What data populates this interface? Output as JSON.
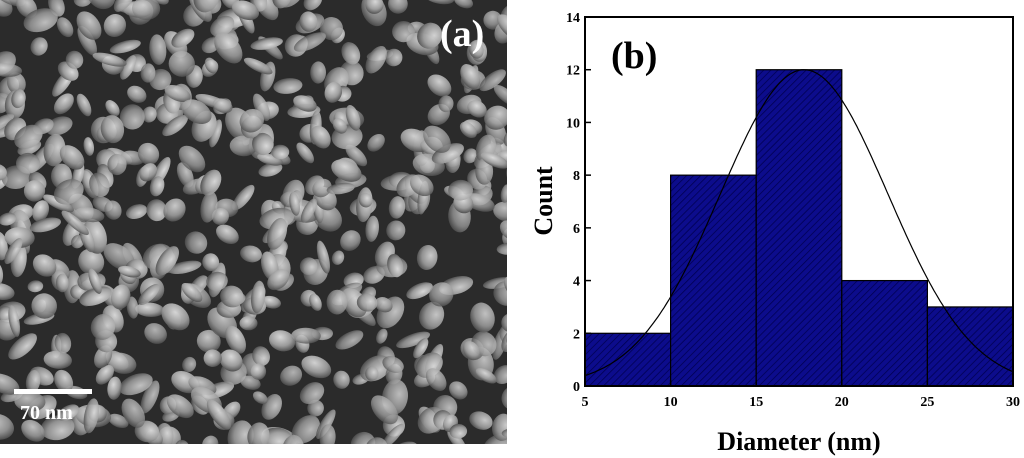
{
  "panel_a": {
    "label": "(a)",
    "scale_bar_text": "70 nm"
  },
  "chart_data": {
    "type": "bar",
    "panel_label": "(b)",
    "title": "",
    "xlabel": "Diameter (nm)",
    "ylabel": "Count",
    "bin_edges": [
      5,
      10,
      15,
      20,
      25,
      30
    ],
    "values": [
      2,
      8,
      12,
      4,
      3
    ],
    "xlim": [
      5,
      30
    ],
    "ylim": [
      0,
      14
    ],
    "x_ticks": [
      5,
      10,
      15,
      20,
      25,
      30
    ],
    "y_ticks": [
      0,
      2,
      4,
      6,
      8,
      10,
      12,
      14
    ],
    "fit": {
      "type": "gaussian",
      "mean": 17.8,
      "sigma": 4.9,
      "peak": 12
    },
    "bar_color": "#0c0c8c",
    "grid": false,
    "legend": "none"
  }
}
